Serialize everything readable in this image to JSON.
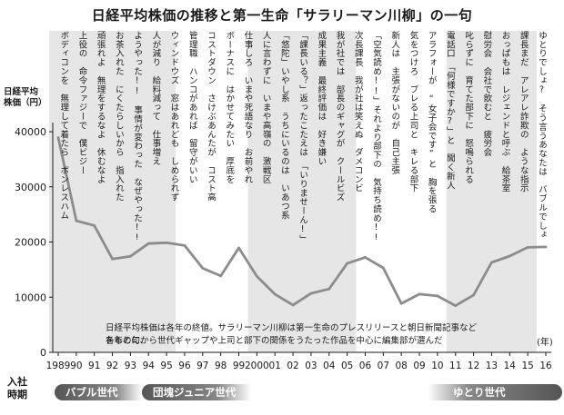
{
  "title": "日経平均株価の推移と第一生命「サラリーマン川柳」の一句",
  "y_axis_label": "日経平均\n株価（円）",
  "year_unit": "(年)",
  "join_label": "入社\n時期",
  "note": {
    "line1": "日経平均株価は各年の終値。サラリーマン川柳は第一生命のプレスリリースと朝日新聞記事などをもとに、",
    "line2": "各年の句から世代ギャップや上司と部下の関係をうたった作品を中心に編集部が選んだ"
  },
  "generations": [
    {
      "label": "バブル世代"
    },
    {
      "label": "団塊ジュニア世代"
    },
    {
      "label": "ゆとり世代"
    }
  ],
  "senryu": [
    "ボディコンを　無理して着たら　ボンレスハム",
    "上役の　命令ファジーで　僕ビジー",
    "頑張れよ　無理をするなよ　休むなよ",
    "お茶入れた　にくたらしいから　指入れた",
    "ようやった!!　事情が変わった　なぜやった!!",
    "人が減り　給料減って　仕事増え",
    "ウィンドウズ　窓はあれども　しめられず",
    "管理職　ハンコがあれば　留守がいい",
    "コストダウン　さけぶあんたが　コスト高",
    "ボーナスに　はかせてみたい　厚底を",
    "仕事しろ　いまや死語なり　お前やれ",
    "人に言わずに　いまや高嶺の　激戦区",
    "「悠陀」いやし系　うちにいるのは　いあつ系",
    "「課長いる？」返ったこたえは　「いりませーん!」",
    "成果主義　最終評価は　好き嫌い",
    "我が社では　部長のギャグが　クールビズ",
    "次長課長　我が社は笑えぬ　ダメコンビ",
    "「空気読め!!」それより部下の　気持ち読め!!",
    "新人は　主張がないのが　自己主張",
    "気をつけろ　ブレる上司と　キレる部下",
    "アラフォーが　“女子会です”と　胸を張る",
    "電話口　「何様ですか?」と　聞く新人",
    "叱らずに　育てた部下に　怒鳴られる",
    "慰労会　会社で飲むと　疲労会",
    "おっぱもは　レジェンドと呼ぶ　給茶室",
    "課長まだ　アレアレ詐欺の　ような指示",
    "ゆとりでしょ?　そう言うあなたは　バブルでしょ?"
  ],
  "chart_data": {
    "type": "line",
    "title": "日経平均株価の推移と第一生命「サラリーマン川柳」の一句",
    "ylabel": "日経平均株価（円）",
    "xlabel": "(年)",
    "x": [
      "1989",
      "90",
      "91",
      "92",
      "93",
      "94",
      "95",
      "96",
      "97",
      "98",
      "99",
      "2000",
      "01",
      "02",
      "03",
      "04",
      "05",
      "06",
      "07",
      "08",
      "09",
      "10",
      "11",
      "12",
      "13",
      "14",
      "15",
      "16"
    ],
    "values": [
      38916,
      23849,
      22984,
      16925,
      17417,
      19723,
      19868,
      19361,
      15259,
      13842,
      18934,
      13786,
      10543,
      8579,
      10677,
      11489,
      16111,
      17226,
      15308,
      8860,
      10546,
      10229,
      8455,
      10395,
      16291,
      17451,
      19034,
      19114
    ],
    "ylim": [
      0,
      40000
    ],
    "yticks": [
      0,
      10000,
      20000,
      30000,
      40000
    ],
    "grid": false,
    "shaded_periods": [
      [
        "1989",
        "90"
      ],
      [
        "91",
        "95"
      ],
      [
        "2000",
        "05"
      ],
      [
        "11",
        "15"
      ]
    ],
    "colors": {
      "line": "#8c8c8c",
      "band": "#e6e6e6",
      "axis": "#1a1a1a"
    }
  }
}
